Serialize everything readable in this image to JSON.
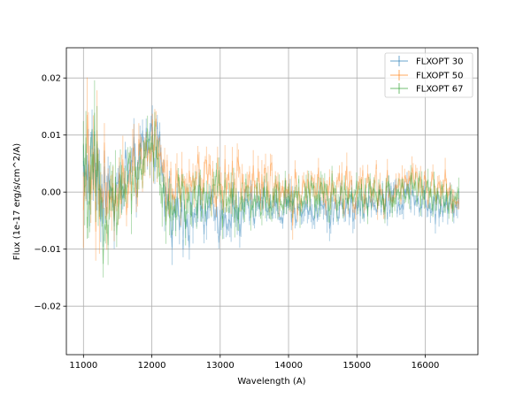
{
  "chart_data": {
    "type": "line",
    "xlabel": "Wavelength (A)",
    "ylabel": "Flux (1e-17 erg/s/cm^2/A)",
    "xlim": [
      10750,
      16770
    ],
    "ylim": [
      -0.0285,
      0.0253
    ],
    "xticks": [
      11000,
      12000,
      13000,
      14000,
      15000,
      16000
    ],
    "yticks": [
      -0.02,
      -0.01,
      0.0,
      0.01,
      0.02
    ],
    "xtick_labels": [
      "11000",
      "12000",
      "13000",
      "14000",
      "15000",
      "16000"
    ],
    "ytick_labels": [
      "−0.02",
      "−0.01",
      "0.00",
      "0.01",
      "0.02"
    ],
    "grid": true,
    "legend_position": "top-right",
    "legend_marker": "errorbar",
    "alpha": 0.35,
    "sample_step": 18,
    "series": [
      {
        "name": "FLXOPT 30",
        "color": "#1f77b4",
        "x": [
          11000,
          11150,
          11300,
          11450,
          11600,
          11750,
          11900,
          12000,
          12100,
          12200,
          12350,
          12500,
          12700,
          12900,
          13100,
          13300,
          13500,
          13700,
          13900,
          14100,
          14300,
          14500,
          14700,
          14900,
          15100,
          15300,
          15500,
          15700,
          15800,
          15900,
          16100,
          16300,
          16500
        ],
        "y": [
          0.004,
          0.005,
          0.001,
          -0.001,
          0.002,
          0.004,
          0.007,
          0.01,
          0.007,
          -0.002,
          -0.003,
          -0.004,
          -0.003,
          -0.004,
          -0.003,
          -0.004,
          -0.003,
          -0.002,
          -0.004,
          -0.003,
          -0.003,
          -0.003,
          -0.003,
          -0.002,
          -0.002,
          -0.002,
          -0.001,
          -0.001,
          0.001,
          -0.002,
          -0.002,
          -0.002,
          -0.002
        ],
        "noise": [
          0.008,
          0.009,
          0.007,
          0.006,
          0.005,
          0.005,
          0.005,
          0.006,
          0.006,
          0.005,
          0.005,
          0.004,
          0.004,
          0.004,
          0.004,
          0.004,
          0.0035,
          0.0035,
          0.0035,
          0.0035,
          0.0035,
          0.0035,
          0.003,
          0.003,
          0.003,
          0.003,
          0.003,
          0.003,
          0.003,
          0.003,
          0.003,
          0.003,
          0.003
        ]
      },
      {
        "name": "FLXOPT 50",
        "color": "#ff7f0e",
        "x": [
          11000,
          11150,
          11300,
          11450,
          11600,
          11750,
          11900,
          12000,
          12100,
          12200,
          12350,
          12500,
          12700,
          12900,
          13100,
          13300,
          13500,
          13700,
          13900,
          14100,
          14300,
          14500,
          14700,
          14900,
          15100,
          15300,
          15500,
          15700,
          15800,
          15900,
          16100,
          16300,
          16500
        ],
        "y": [
          0.003,
          0.002,
          -0.001,
          -0.003,
          0.001,
          0.003,
          0.006,
          0.009,
          0.006,
          0.0,
          0.001,
          0.001,
          0.002,
          0.001,
          0.002,
          0.002,
          0.002,
          0.001,
          0.001,
          0.0,
          0.001,
          0.0,
          0.0,
          0.001,
          0.0,
          0.0,
          0.0,
          0.001,
          0.003,
          0.001,
          0.0,
          0.0,
          0.0
        ],
        "noise": [
          0.01,
          0.011,
          0.009,
          0.008,
          0.006,
          0.006,
          0.005,
          0.006,
          0.006,
          0.005,
          0.005,
          0.005,
          0.0045,
          0.0045,
          0.0045,
          0.004,
          0.004,
          0.004,
          0.004,
          0.004,
          0.0035,
          0.0035,
          0.0035,
          0.0035,
          0.0035,
          0.0035,
          0.003,
          0.003,
          0.003,
          0.003,
          0.003,
          0.003,
          0.003
        ]
      },
      {
        "name": "FLXOPT 67",
        "color": "#2ca02c",
        "x": [
          11000,
          11150,
          11300,
          11450,
          11600,
          11750,
          11900,
          12000,
          12100,
          12200,
          12350,
          12500,
          12700,
          12900,
          13100,
          13300,
          13500,
          13700,
          13900,
          14100,
          14300,
          14500,
          14700,
          14900,
          15100,
          15300,
          15500,
          15700,
          15800,
          15900,
          16100,
          16300,
          16500
        ],
        "y": [
          0.002,
          0.001,
          -0.002,
          0.0,
          0.001,
          0.003,
          0.006,
          0.009,
          0.005,
          -0.002,
          -0.002,
          -0.002,
          -0.001,
          -0.001,
          -0.001,
          -0.001,
          -0.001,
          -0.001,
          -0.001,
          -0.001,
          -0.001,
          -0.001,
          -0.001,
          0.0,
          -0.001,
          -0.001,
          0.0,
          0.0,
          0.002,
          0.0,
          -0.001,
          -0.001,
          -0.001
        ],
        "noise": [
          0.009,
          0.01,
          0.008,
          0.007,
          0.006,
          0.005,
          0.005,
          0.006,
          0.006,
          0.005,
          0.005,
          0.0045,
          0.0045,
          0.004,
          0.004,
          0.004,
          0.004,
          0.0035,
          0.0035,
          0.0035,
          0.0035,
          0.0035,
          0.003,
          0.003,
          0.003,
          0.003,
          0.003,
          0.003,
          0.003,
          0.003,
          0.003,
          0.003,
          0.003
        ]
      }
    ]
  }
}
